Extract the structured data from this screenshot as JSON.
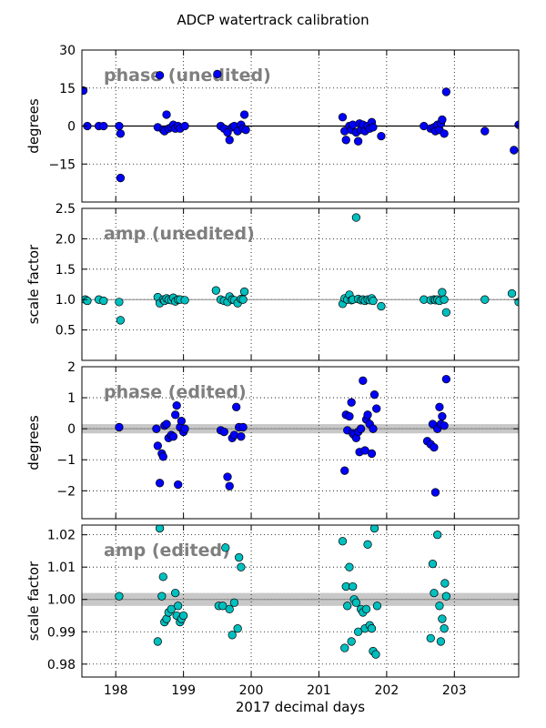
{
  "figure_title": "ADCP watertrack calibration",
  "x_axis_label": "2017 decimal days",
  "colors": {
    "blue_marker": "#0000ff",
    "cyan_marker": "#00bfbf",
    "annotation": "#7f7f7f",
    "band": "#c8c8c8"
  },
  "chart_data": [
    {
      "type": "scatter",
      "annotation": "phase (unedited)",
      "ylabel": "degrees",
      "xlim": [
        197.5,
        203.95
      ],
      "ylim": [
        -30,
        30
      ],
      "yticks": [
        -15,
        0,
        15,
        30
      ],
      "ytick_labels": [
        "−15",
        "0",
        "15",
        "30"
      ],
      "xticks": [
        198,
        199,
        200,
        201,
        202,
        203
      ],
      "grid": true,
      "reference_line": 0,
      "marker_color": "#0000ff",
      "points": [
        [
          197.52,
          14.0
        ],
        [
          197.58,
          0.0
        ],
        [
          197.75,
          0.0
        ],
        [
          197.82,
          0.0
        ],
        [
          198.05,
          0.0
        ],
        [
          198.07,
          -3.0
        ],
        [
          198.07,
          -20.5
        ],
        [
          198.62,
          -0.5
        ],
        [
          198.65,
          20.0
        ],
        [
          198.7,
          -1.5
        ],
        [
          198.72,
          -2.0
        ],
        [
          198.75,
          4.5
        ],
        [
          198.78,
          -1.0
        ],
        [
          198.82,
          -0.5
        ],
        [
          198.85,
          0.5
        ],
        [
          198.88,
          -1.0
        ],
        [
          198.92,
          0.0
        ],
        [
          198.95,
          -1.0
        ],
        [
          199.02,
          0.0
        ],
        [
          199.5,
          20.5
        ],
        [
          199.55,
          0.0
        ],
        [
          199.6,
          -1.0
        ],
        [
          199.65,
          -2.5
        ],
        [
          199.68,
          -5.5
        ],
        [
          199.72,
          -0.5
        ],
        [
          199.75,
          0.0
        ],
        [
          199.8,
          -2.0
        ],
        [
          199.85,
          0.5
        ],
        [
          199.88,
          -1.0
        ],
        [
          199.9,
          4.5
        ],
        [
          199.92,
          -1.5
        ],
        [
          201.35,
          3.5
        ],
        [
          201.38,
          -2.0
        ],
        [
          201.4,
          -5.5
        ],
        [
          201.45,
          0.0
        ],
        [
          201.48,
          -1.5
        ],
        [
          201.5,
          0.5
        ],
        [
          201.55,
          -2.5
        ],
        [
          201.58,
          -6.0
        ],
        [
          201.6,
          1.0
        ],
        [
          201.62,
          -1.5
        ],
        [
          201.65,
          0.5
        ],
        [
          201.68,
          -2.0
        ],
        [
          201.72,
          0.0
        ],
        [
          201.75,
          -1.0
        ],
        [
          201.78,
          1.5
        ],
        [
          201.8,
          -0.5
        ],
        [
          201.92,
          -4.0
        ],
        [
          202.55,
          0.0
        ],
        [
          202.65,
          -1.0
        ],
        [
          202.7,
          -0.5
        ],
        [
          202.72,
          -2.0
        ],
        [
          202.75,
          0.5
        ],
        [
          202.78,
          -1.5
        ],
        [
          202.8,
          1.0
        ],
        [
          202.82,
          2.5
        ],
        [
          202.85,
          -3.0
        ],
        [
          202.88,
          13.5
        ],
        [
          203.45,
          -2.0
        ],
        [
          203.88,
          -9.5
        ],
        [
          203.95,
          0.5
        ]
      ]
    },
    {
      "type": "scatter",
      "annotation": "amp (unedited)",
      "ylabel": "scale factor",
      "xlim": [
        197.5,
        203.95
      ],
      "ylim": [
        0.0,
        2.5
      ],
      "yticks": [
        0.5,
        1.0,
        1.5,
        2.0,
        2.5
      ],
      "ytick_labels": [
        "0.5",
        "1.0",
        "1.5",
        "2.0",
        "2.5"
      ],
      "xticks": [
        198,
        199,
        200,
        201,
        202,
        203
      ],
      "grid": true,
      "reference_line": 1.0,
      "marker_color": "#00bfbf",
      "points": [
        [
          197.55,
          1.0
        ],
        [
          197.58,
          0.98
        ],
        [
          197.75,
          1.0
        ],
        [
          197.82,
          0.98
        ],
        [
          198.05,
          0.96
        ],
        [
          198.07,
          0.66
        ],
        [
          198.62,
          1.04
        ],
        [
          198.65,
          0.94
        ],
        [
          198.7,
          1.0
        ],
        [
          198.72,
          0.98
        ],
        [
          198.75,
          1.02
        ],
        [
          198.78,
          1.0
        ],
        [
          198.82,
          0.99
        ],
        [
          198.85,
          1.03
        ],
        [
          198.88,
          0.97
        ],
        [
          198.92,
          1.0
        ],
        [
          198.95,
          1.0
        ],
        [
          199.02,
          0.99
        ],
        [
          199.48,
          1.15
        ],
        [
          199.55,
          1.0
        ],
        [
          199.6,
          0.98
        ],
        [
          199.65,
          0.96
        ],
        [
          199.68,
          1.05
        ],
        [
          199.72,
          1.0
        ],
        [
          199.75,
          0.99
        ],
        [
          199.8,
          0.94
        ],
        [
          199.85,
          1.01
        ],
        [
          199.88,
          1.0
        ],
        [
          199.9,
          1.13
        ],
        [
          201.35,
          0.93
        ],
        [
          201.38,
          1.02
        ],
        [
          201.42,
          1.0
        ],
        [
          201.45,
          1.08
        ],
        [
          201.48,
          0.99
        ],
        [
          201.5,
          1.0
        ],
        [
          201.55,
          2.35
        ],
        [
          201.58,
          1.01
        ],
        [
          201.62,
          0.99
        ],
        [
          201.65,
          1.0
        ],
        [
          201.68,
          0.98
        ],
        [
          201.72,
          1.0
        ],
        [
          201.75,
          0.99
        ],
        [
          201.78,
          1.02
        ],
        [
          201.8,
          0.98
        ],
        [
          201.92,
          0.89
        ],
        [
          202.55,
          1.0
        ],
        [
          202.65,
          0.99
        ],
        [
          202.7,
          1.0
        ],
        [
          202.72,
          0.99
        ],
        [
          202.75,
          1.0
        ],
        [
          202.78,
          0.98
        ],
        [
          202.82,
          1.12
        ],
        [
          202.85,
          1.0
        ],
        [
          202.88,
          0.79
        ],
        [
          203.45,
          1.0
        ],
        [
          203.85,
          1.1
        ],
        [
          203.95,
          0.96
        ]
      ]
    },
    {
      "type": "scatter",
      "annotation": "phase (edited)",
      "ylabel": "degrees",
      "xlim": [
        197.5,
        203.95
      ],
      "ylim": [
        -2.9,
        2.0
      ],
      "yticks": [
        -2,
        -1,
        0,
        1,
        2
      ],
      "ytick_labels": [
        "−2",
        "−1",
        "0",
        "1",
        "2"
      ],
      "xticks": [
        198,
        199,
        200,
        201,
        202,
        203
      ],
      "grid": true,
      "reference_line": 0,
      "band": [
        -0.15,
        0.15
      ],
      "marker_color": "#0000ff",
      "points": [
        [
          198.05,
          0.05
        ],
        [
          198.6,
          0.0
        ],
        [
          198.62,
          -0.55
        ],
        [
          198.65,
          -1.75
        ],
        [
          198.68,
          -0.8
        ],
        [
          198.7,
          -0.9
        ],
        [
          198.72,
          0.1
        ],
        [
          198.75,
          0.15
        ],
        [
          198.78,
          -0.3
        ],
        [
          198.82,
          -0.2
        ],
        [
          198.85,
          -0.25
        ],
        [
          198.88,
          0.45
        ],
        [
          198.9,
          0.75
        ],
        [
          198.92,
          -1.8
        ],
        [
          198.95,
          0.05
        ],
        [
          198.97,
          0.25
        ],
        [
          199.0,
          -0.1
        ],
        [
          199.02,
          0.0
        ],
        [
          199.55,
          -0.05
        ],
        [
          199.6,
          -0.1
        ],
        [
          199.65,
          -1.55
        ],
        [
          199.68,
          -1.85
        ],
        [
          199.72,
          -0.3
        ],
        [
          199.75,
          -0.2
        ],
        [
          199.78,
          0.7
        ],
        [
          199.82,
          0.05
        ],
        [
          199.85,
          -0.25
        ],
        [
          199.88,
          0.05
        ],
        [
          201.38,
          -1.35
        ],
        [
          201.4,
          0.45
        ],
        [
          201.42,
          -0.05
        ],
        [
          201.45,
          0.4
        ],
        [
          201.48,
          0.85
        ],
        [
          201.5,
          -0.15
        ],
        [
          201.52,
          -0.2
        ],
        [
          201.55,
          -0.3
        ],
        [
          201.58,
          -0.1
        ],
        [
          201.6,
          -0.75
        ],
        [
          201.62,
          0.0
        ],
        [
          201.65,
          1.55
        ],
        [
          201.68,
          -0.7
        ],
        [
          201.7,
          0.3
        ],
        [
          201.72,
          0.45
        ],
        [
          201.75,
          0.15
        ],
        [
          201.78,
          -0.8
        ],
        [
          201.8,
          0.0
        ],
        [
          201.82,
          1.1
        ],
        [
          201.85,
          0.65
        ],
        [
          202.6,
          -0.4
        ],
        [
          202.65,
          -0.5
        ],
        [
          202.68,
          0.15
        ],
        [
          202.7,
          -0.6
        ],
        [
          202.72,
          -2.05
        ],
        [
          202.75,
          0.0
        ],
        [
          202.78,
          0.7
        ],
        [
          202.8,
          0.15
        ],
        [
          202.82,
          0.4
        ],
        [
          202.85,
          0.1
        ],
        [
          202.88,
          1.6
        ]
      ]
    },
    {
      "type": "scatter",
      "annotation": "amp (edited)",
      "ylabel": "scale factor",
      "xlabel": "2017 decimal days",
      "xlim": [
        197.5,
        203.95
      ],
      "ylim": [
        0.976,
        1.023
      ],
      "yticks": [
        0.98,
        0.99,
        1.0,
        1.01,
        1.02
      ],
      "ytick_labels": [
        "0.98",
        "0.99",
        "1.00",
        "1.01",
        "1.02"
      ],
      "xticks": [
        198,
        199,
        200,
        201,
        202,
        203
      ],
      "xtick_labels": [
        "198",
        "199",
        "200",
        "201",
        "202",
        "203"
      ],
      "grid": true,
      "reference_line": 1.0,
      "band": [
        0.998,
        1.002
      ],
      "marker_color": "#00bfbf",
      "points": [
        [
          198.05,
          1.001
        ],
        [
          198.62,
          0.987
        ],
        [
          198.65,
          1.022
        ],
        [
          198.68,
          1.001
        ],
        [
          198.7,
          1.007
        ],
        [
          198.72,
          0.993
        ],
        [
          198.75,
          0.994
        ],
        [
          198.78,
          0.996
        ],
        [
          198.82,
          0.997
        ],
        [
          198.88,
          1.002
        ],
        [
          198.9,
          0.995
        ],
        [
          198.92,
          0.998
        ],
        [
          198.95,
          0.993
        ],
        [
          198.97,
          0.994
        ],
        [
          199.0,
          0.995
        ],
        [
          199.52,
          0.998
        ],
        [
          199.58,
          0.998
        ],
        [
          199.62,
          1.016
        ],
        [
          199.68,
          0.997
        ],
        [
          199.72,
          0.989
        ],
        [
          199.75,
          0.999
        ],
        [
          199.8,
          0.991
        ],
        [
          199.82,
          1.013
        ],
        [
          199.85,
          1.01
        ],
        [
          201.35,
          1.018
        ],
        [
          201.38,
          0.985
        ],
        [
          201.4,
          1.004
        ],
        [
          201.42,
          0.998
        ],
        [
          201.45,
          1.01
        ],
        [
          201.48,
          0.987
        ],
        [
          201.5,
          1.004
        ],
        [
          201.52,
          1.0
        ],
        [
          201.55,
          0.999
        ],
        [
          201.58,
          0.99
        ],
        [
          201.62,
          0.997
        ],
        [
          201.65,
          0.996
        ],
        [
          201.68,
          0.991
        ],
        [
          201.7,
          0.997
        ],
        [
          201.72,
          1.017
        ],
        [
          201.75,
          0.992
        ],
        [
          201.78,
          0.991
        ],
        [
          201.8,
          0.984
        ],
        [
          201.82,
          1.022
        ],
        [
          201.84,
          0.983
        ],
        [
          201.86,
          0.998
        ],
        [
          202.65,
          0.988
        ],
        [
          202.68,
          1.011
        ],
        [
          202.7,
          1.002
        ],
        [
          202.75,
          1.02
        ],
        [
          202.78,
          0.998
        ],
        [
          202.8,
          0.987
        ],
        [
          202.82,
          0.994
        ],
        [
          202.85,
          0.991
        ],
        [
          202.86,
          1.005
        ],
        [
          202.88,
          1.001
        ]
      ]
    }
  ]
}
